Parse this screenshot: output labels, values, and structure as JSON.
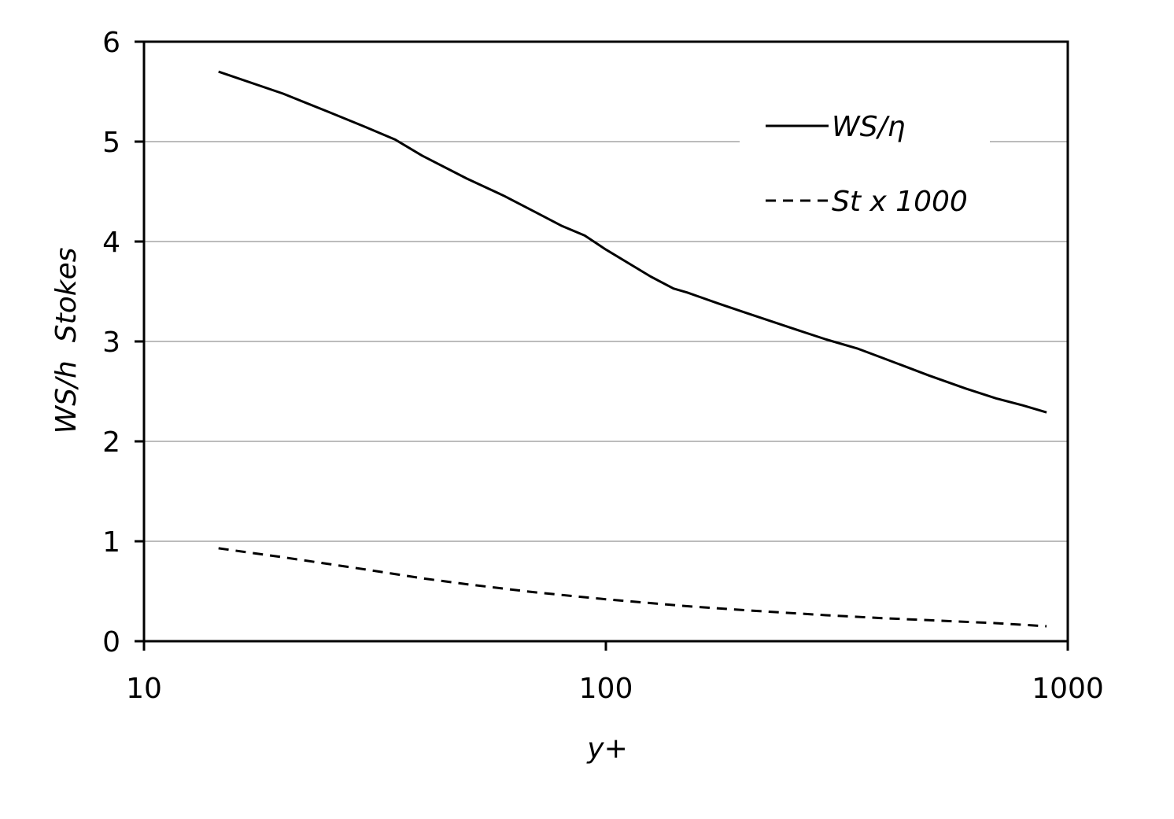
{
  "chart_data": {
    "type": "line",
    "xlabel": "y+",
    "ylabel": "WS/h  Stokes",
    "xscale": "log",
    "xlim": [
      10,
      1000
    ],
    "ylim": [
      0,
      6
    ],
    "x_ticks": [
      "10",
      "100",
      "1000"
    ],
    "y_ticks": [
      "0",
      "1",
      "2",
      "3",
      "4",
      "5",
      "6"
    ],
    "grid": "horizontal",
    "legend_position": "top-right",
    "series": [
      {
        "name": "WS/η",
        "style": "solid",
        "color": "#000000",
        "x": [
          14.5,
          20,
          25,
          30,
          35,
          40,
          50,
          60,
          70,
          80,
          90,
          100,
          125,
          140,
          150,
          175,
          200,
          250,
          300,
          350,
          400,
          500,
          600,
          700,
          800,
          900
        ],
        "y": [
          5.7,
          5.48,
          5.3,
          5.15,
          5.02,
          4.86,
          4.63,
          4.46,
          4.3,
          4.16,
          4.06,
          3.92,
          3.65,
          3.53,
          3.49,
          3.38,
          3.29,
          3.14,
          3.02,
          2.93,
          2.83,
          2.66,
          2.53,
          2.43,
          2.36,
          2.29
        ]
      },
      {
        "name": "St x 1000",
        "style": "dashed",
        "color": "#000000",
        "x": [
          14.5,
          20,
          30,
          40,
          50,
          70,
          100,
          150,
          200,
          300,
          400,
          500,
          700,
          900
        ],
        "y": [
          0.93,
          0.84,
          0.72,
          0.63,
          0.57,
          0.49,
          0.42,
          0.35,
          0.31,
          0.26,
          0.23,
          0.21,
          0.18,
          0.15
        ]
      }
    ]
  }
}
